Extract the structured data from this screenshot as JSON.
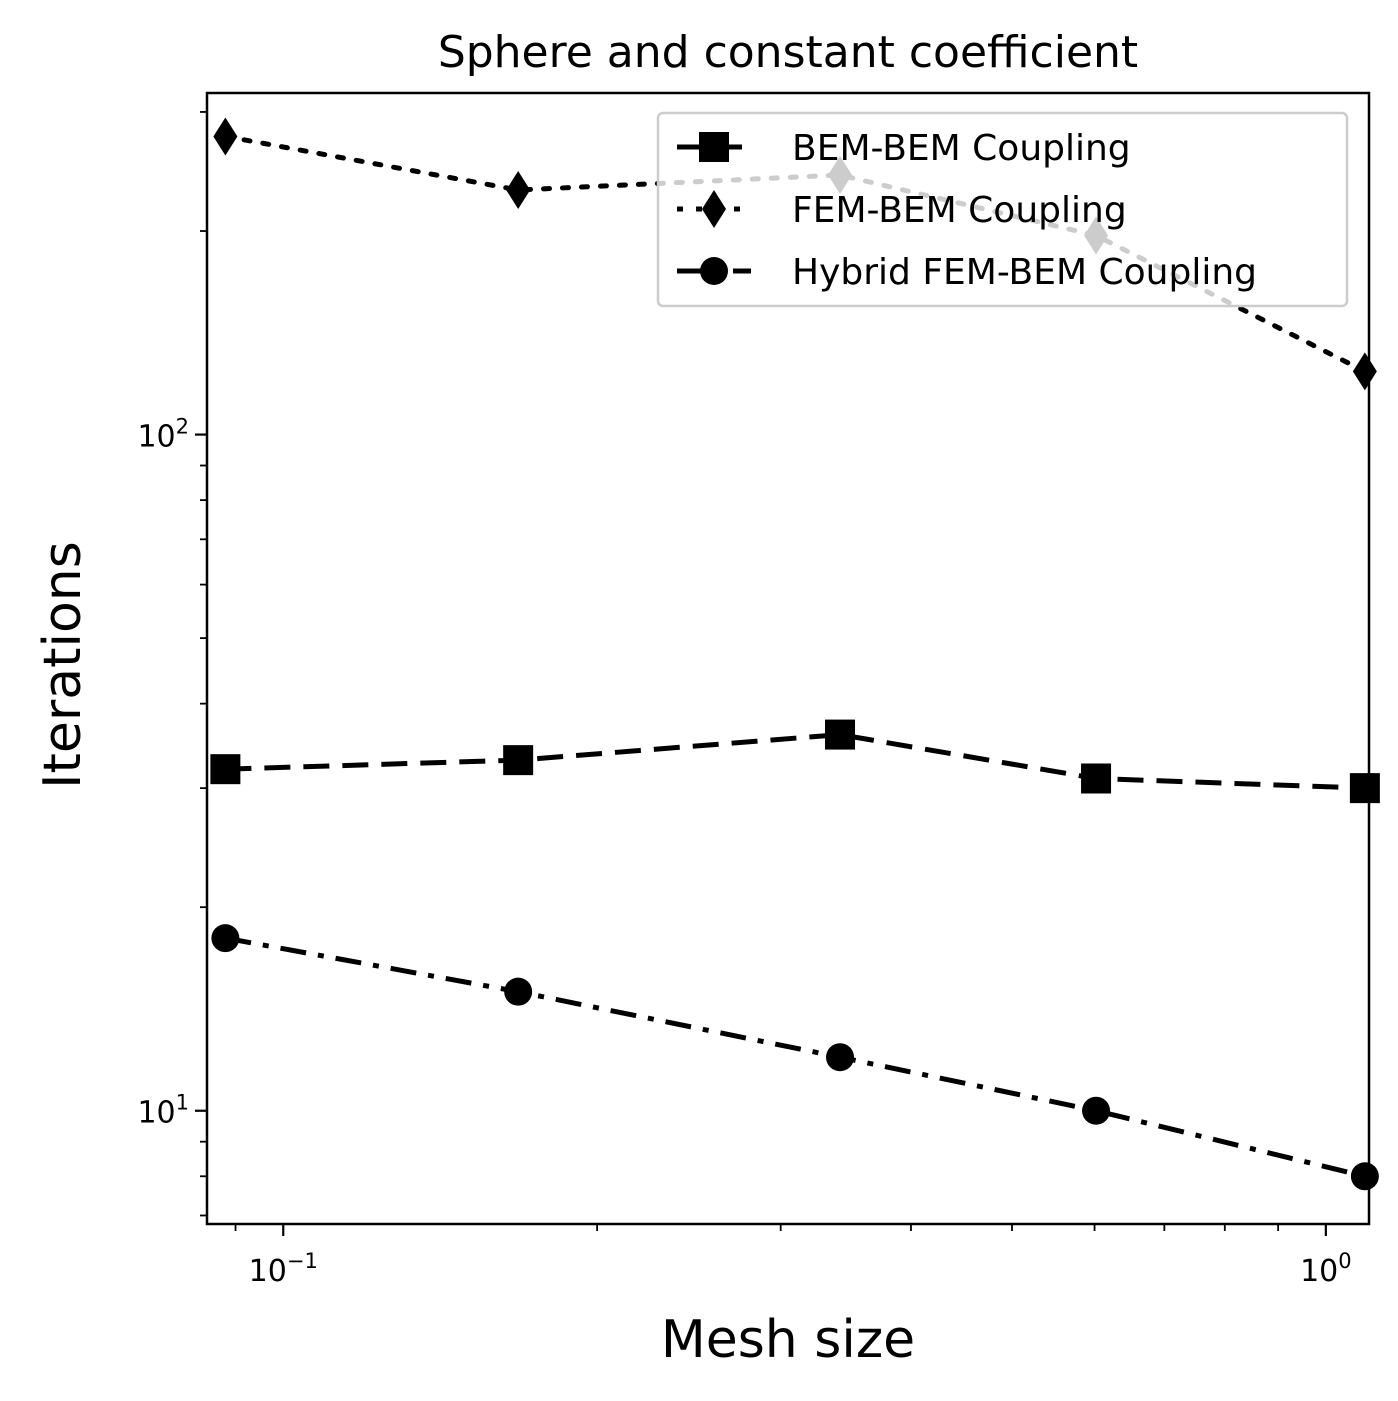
{
  "chart_data": {
    "type": "line",
    "title": "Sphere and constant coefficient",
    "xlabel": "Mesh size",
    "ylabel": "Iterations",
    "xscale": "log",
    "yscale": "log",
    "xlim": [
      0.0845,
      1.1
    ],
    "ylim": [
      6.8,
      320
    ],
    "x": [
      0.088,
      0.168,
      0.342,
      0.602,
      1.09
    ],
    "series": [
      {
        "name": "BEM-BEM Coupling",
        "values": [
          32,
          33,
          36,
          31,
          30
        ],
        "marker": "square",
        "dash": "dashed",
        "color": "#000000"
      },
      {
        "name": "FEM-BEM Coupling",
        "values": [
          276,
          230,
          242,
          197,
          124
        ],
        "marker": "thin_diamond",
        "dash": "dotted",
        "color": "#000000"
      },
      {
        "name": "Hybrid FEM-BEM Coupling",
        "values": [
          18,
          15,
          12,
          10,
          8
        ],
        "marker": "circle",
        "dash": "dashdot",
        "color": "#000000"
      }
    ],
    "x_ticks": [
      {
        "value": 0.1,
        "base": "10",
        "exp": "−1"
      },
      {
        "value": 1,
        "base": "10",
        "exp": "0"
      }
    ],
    "y_ticks": [
      {
        "value": 10,
        "base": "10",
        "exp": "1"
      },
      {
        "value": 100,
        "base": "10",
        "exp": "2"
      }
    ],
    "grid": false,
    "legend_position": "top-right"
  }
}
